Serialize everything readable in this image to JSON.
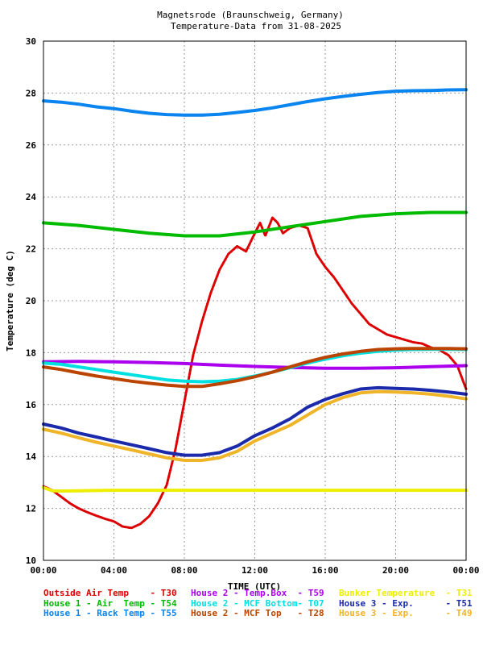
{
  "chart_data": {
    "type": "line",
    "title": "Magnetsrode (Braunschweig, Germany)",
    "subtitle": "Temperature-Data from 31-08-2025",
    "xlabel": "TIME (UTC)",
    "ylabel": "Temperature (deg C)",
    "xlim": [
      0,
      24
    ],
    "ylim": [
      10,
      30
    ],
    "x_ticks": [
      {
        "v": 0,
        "label": "00:00"
      },
      {
        "v": 4,
        "label": "04:00"
      },
      {
        "v": 8,
        "label": "08:00"
      },
      {
        "v": 12,
        "label": "12:00"
      },
      {
        "v": 16,
        "label": "16:00"
      },
      {
        "v": 20,
        "label": "20:00"
      },
      {
        "v": 24,
        "label": "00:00"
      }
    ],
    "y_ticks": [
      {
        "v": 10,
        "label": "10"
      },
      {
        "v": 12,
        "label": "12"
      },
      {
        "v": 14,
        "label": "14"
      },
      {
        "v": 16,
        "label": "16"
      },
      {
        "v": 18,
        "label": "18"
      },
      {
        "v": 20,
        "label": "20"
      },
      {
        "v": 22,
        "label": "22"
      },
      {
        "v": 24,
        "label": "24"
      },
      {
        "v": 26,
        "label": "26"
      },
      {
        "v": 28,
        "label": "28"
      },
      {
        "v": 30,
        "label": "30"
      }
    ],
    "grid": true,
    "legend_position": "bottom",
    "series": [
      {
        "name": "Outside Air Temp",
        "code": "T30",
        "color": "#dd0000",
        "x": [
          0,
          0.5,
          1,
          1.5,
          2,
          2.5,
          3,
          3.5,
          4,
          4.5,
          5,
          5.5,
          6,
          6.5,
          7,
          7.5,
          8,
          8.5,
          9,
          9.5,
          10,
          10.5,
          11,
          11.5,
          12,
          12.3,
          12.6,
          13,
          13.3,
          13.6,
          14,
          14.5,
          15,
          15.5,
          16,
          16.5,
          17,
          17.5,
          18,
          18.5,
          19,
          19.5,
          20,
          20.5,
          21,
          21.5,
          22,
          22.5,
          23,
          23.5,
          24
        ],
        "y": [
          12.85,
          12.7,
          12.45,
          12.2,
          12.0,
          11.85,
          11.72,
          11.6,
          11.5,
          11.3,
          11.25,
          11.4,
          11.7,
          12.2,
          12.9,
          14.3,
          16.1,
          17.9,
          19.2,
          20.3,
          21.2,
          21.8,
          22.1,
          21.9,
          22.6,
          23.0,
          22.5,
          23.2,
          23.0,
          22.6,
          22.8,
          22.9,
          22.8,
          21.8,
          21.3,
          20.9,
          20.4,
          19.9,
          19.5,
          19.1,
          18.9,
          18.7,
          18.6,
          18.5,
          18.4,
          18.35,
          18.2,
          18.1,
          17.9,
          17.5,
          16.6
        ]
      },
      {
        "name": "House 2 - Temp.Box",
        "code": "T59",
        "color": "#aa00ee",
        "x": [
          0,
          2,
          4,
          6,
          8,
          10,
          12,
          14,
          16,
          18,
          20,
          22,
          24
        ],
        "y": [
          17.65,
          17.66,
          17.65,
          17.62,
          17.58,
          17.52,
          17.47,
          17.43,
          17.4,
          17.4,
          17.42,
          17.46,
          17.5
        ]
      },
      {
        "name": "Bunker Temperature",
        "code": "T31",
        "color": "#eeee00",
        "x": [
          0,
          0.5,
          1,
          2,
          4,
          6,
          8,
          10,
          12,
          14,
          16,
          18,
          20,
          22,
          24
        ],
        "y": [
          12.8,
          12.68,
          12.67,
          12.68,
          12.7,
          12.7,
          12.7,
          12.7,
          12.7,
          12.7,
          12.7,
          12.7,
          12.7,
          12.7,
          12.7
        ]
      },
      {
        "name": "House 1 - Air  Temp",
        "code": "T54",
        "color": "#00bb00",
        "x": [
          0,
          2,
          4,
          6,
          8,
          10,
          12,
          14,
          16,
          18,
          20,
          22,
          24
        ],
        "y": [
          23.0,
          22.9,
          22.75,
          22.6,
          22.5,
          22.5,
          22.65,
          22.85,
          23.05,
          23.25,
          23.35,
          23.4,
          23.4
        ]
      },
      {
        "name": "House 2 - MCF Bottom",
        "code": "T07",
        "color": "#00e0e0",
        "x": [
          0,
          1,
          2,
          3,
          4,
          5,
          6,
          7,
          8,
          9,
          10,
          11,
          12,
          13,
          14,
          15,
          16,
          17,
          18,
          19,
          20,
          21,
          22,
          23,
          24
        ],
        "y": [
          17.6,
          17.55,
          17.45,
          17.35,
          17.25,
          17.15,
          17.05,
          16.95,
          16.9,
          16.88,
          16.9,
          16.97,
          17.1,
          17.25,
          17.42,
          17.6,
          17.75,
          17.88,
          17.98,
          18.05,
          18.1,
          18.12,
          18.13,
          18.13,
          18.12
        ]
      },
      {
        "name": "House 3 - Exp.",
        "code": "T51",
        "color": "#1a2aaa",
        "x": [
          0,
          1,
          2,
          3,
          4,
          5,
          6,
          7,
          8,
          9,
          10,
          11,
          12,
          13,
          14,
          15,
          16,
          17,
          18,
          19,
          20,
          21,
          22,
          23,
          24
        ],
        "y": [
          15.25,
          15.1,
          14.9,
          14.75,
          14.6,
          14.45,
          14.3,
          14.15,
          14.05,
          14.05,
          14.15,
          14.4,
          14.8,
          15.1,
          15.45,
          15.9,
          16.2,
          16.42,
          16.6,
          16.65,
          16.62,
          16.6,
          16.55,
          16.48,
          16.4
        ]
      },
      {
        "name": "House 1 - Rack Temp",
        "code": "T55",
        "color": "#0a84ee",
        "x": [
          0,
          1,
          2,
          3,
          4,
          5,
          6,
          7,
          8,
          9,
          10,
          11,
          12,
          13,
          14,
          15,
          16,
          17,
          18,
          19,
          20,
          21,
          22,
          23,
          24
        ],
        "y": [
          27.7,
          27.65,
          27.57,
          27.47,
          27.4,
          27.3,
          27.22,
          27.17,
          27.15,
          27.15,
          27.18,
          27.25,
          27.33,
          27.43,
          27.55,
          27.67,
          27.78,
          27.87,
          27.95,
          28.02,
          28.07,
          28.09,
          28.1,
          28.12,
          28.13
        ]
      },
      {
        "name": "House 2 - MCF Top",
        "code": "T28",
        "color": "#bb4400",
        "x": [
          0,
          1,
          2,
          3,
          4,
          5,
          6,
          7,
          8,
          9,
          10,
          11,
          12,
          13,
          14,
          15,
          16,
          17,
          18,
          19,
          20,
          21,
          22,
          23,
          24
        ],
        "y": [
          17.45,
          17.35,
          17.22,
          17.1,
          17.0,
          16.9,
          16.82,
          16.75,
          16.7,
          16.7,
          16.8,
          16.92,
          17.07,
          17.25,
          17.45,
          17.65,
          17.82,
          17.95,
          18.05,
          18.12,
          18.15,
          18.16,
          18.16,
          18.16,
          18.15
        ]
      },
      {
        "name": "House 3 - Exp.",
        "code": "T49",
        "color": "#f0b428",
        "x": [
          0,
          1,
          2,
          3,
          4,
          5,
          6,
          7,
          8,
          9,
          10,
          11,
          12,
          13,
          14,
          15,
          16,
          17,
          18,
          19,
          20,
          21,
          22,
          23,
          24
        ],
        "y": [
          15.05,
          14.9,
          14.72,
          14.55,
          14.4,
          14.25,
          14.1,
          13.95,
          13.85,
          13.85,
          13.95,
          14.2,
          14.6,
          14.9,
          15.2,
          15.6,
          16.0,
          16.27,
          16.45,
          16.5,
          16.48,
          16.45,
          16.4,
          16.32,
          16.22
        ]
      }
    ],
    "legend_rows": [
      [
        {
          "label": "Outside Air Temp    - T30",
          "color": "#dd0000"
        },
        {
          "label": "House 2 - Temp.Box  - T59",
          "color": "#aa00ee"
        },
        {
          "label": "Bunker Temperature  - T31",
          "color": "#eeee00"
        }
      ],
      [
        {
          "label": "House 1 - Air  Temp - T54",
          "color": "#00bb00"
        },
        {
          "label": "House 2 - MCF Bottom- T07",
          "color": "#00e0e0"
        },
        {
          "label": "House 3 - Exp.      - T51",
          "color": "#1a2aaa"
        }
      ],
      [
        {
          "label": "House 1 - Rack Temp - T55",
          "color": "#0a84ee"
        },
        {
          "label": "House 2 - MCF Top   - T28",
          "color": "#bb4400"
        },
        {
          "label": "House 3 - Exp.      - T49",
          "color": "#f0b428"
        }
      ]
    ]
  }
}
